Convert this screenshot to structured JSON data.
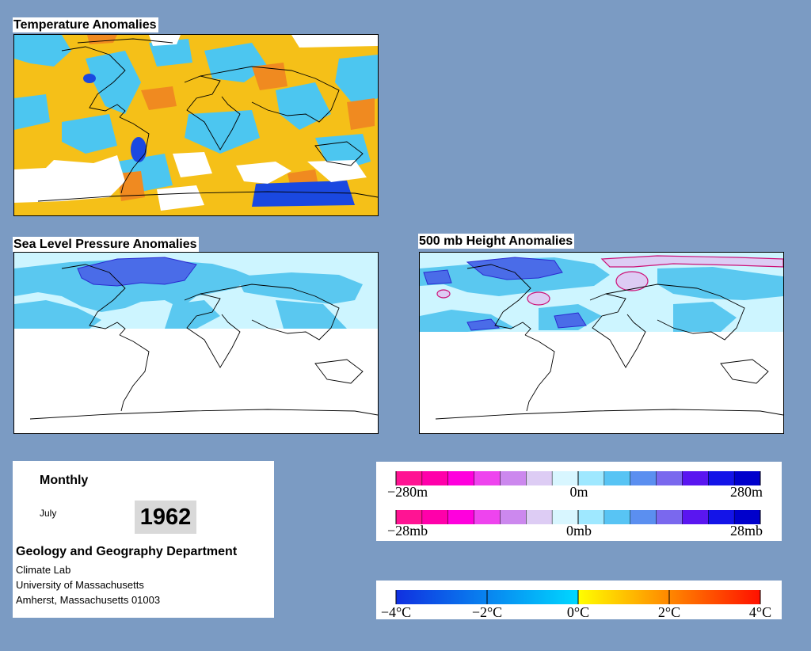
{
  "panels": {
    "temperature": {
      "title": "Temperature Anomalies"
    },
    "slp": {
      "title": "Sea Level Pressure Anomalies"
    },
    "h500": {
      "title": "500 mb Height Anomalies"
    }
  },
  "info": {
    "period": "Monthly",
    "month": "July",
    "year": "1962",
    "department": "Geology and Geography Department",
    "lab": "Climate Lab",
    "university": "University of Massachusetts",
    "address": "Amherst, Massachusetts 01003"
  },
  "legends": {
    "height": {
      "labels": [
        "−280m",
        "0m",
        "280m"
      ],
      "colors": [
        "#ff1493",
        "#ff00aa",
        "#ff00dd",
        "#ee44ee",
        "#cc88ee",
        "#ddccf4",
        "#d8f6ff",
        "#9fe8ff",
        "#58c4f4",
        "#5b8ff0",
        "#7a68ee",
        "#5a16f0",
        "#1414e8",
        "#0000cc"
      ]
    },
    "pressure": {
      "labels": [
        "−28mb",
        "0mb",
        "28mb"
      ],
      "colors": [
        "#ff1493",
        "#ff00aa",
        "#ff00dd",
        "#ee44ee",
        "#cc88ee",
        "#ddccf4",
        "#d8f6ff",
        "#9fe8ff",
        "#58c4f4",
        "#5b8ff0",
        "#7a68ee",
        "#5a16f0",
        "#1414e8",
        "#0000cc"
      ]
    },
    "temperature": {
      "labels": [
        "−4°C",
        "−2°C",
        "0°C",
        "2°C",
        "4°C"
      ],
      "cold_colors": [
        "#1030e0",
        "#00d8ff"
      ],
      "warm_colors": [
        "#ffff00",
        "#ff1000"
      ]
    }
  },
  "colors": {
    "background": "#7b9bc3",
    "temp_warm": "#f5c018",
    "temp_hot": "#f08a20",
    "temp_cool": "#4cc6f0",
    "temp_cold": "#1a48e0",
    "anom_light": "#cdf5ff",
    "anom_mid": "#5ac8f0",
    "anom_strong": "#4a6ce8"
  }
}
